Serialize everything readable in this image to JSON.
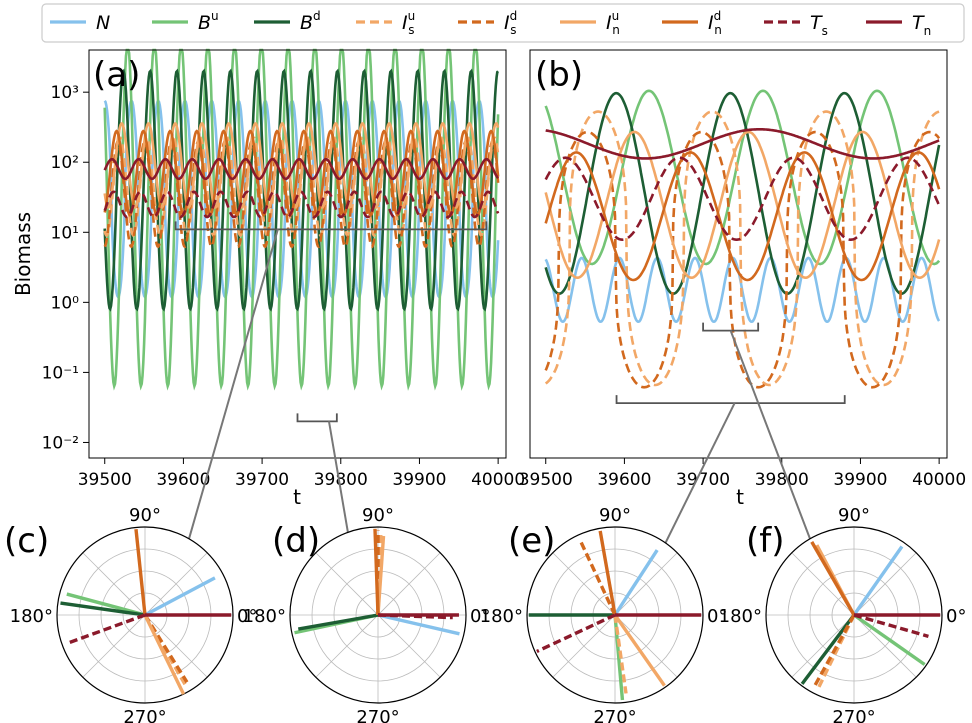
{
  "legend": {
    "entries": [
      {
        "key": "N",
        "main": "N",
        "sup": "",
        "sub": "",
        "color": "#85c1ec",
        "dash": "solid"
      },
      {
        "key": "Bu",
        "main": "B",
        "sup": "u",
        "sub": "",
        "color": "#74c476",
        "dash": "solid"
      },
      {
        "key": "Bd",
        "main": "B",
        "sup": "d",
        "sub": "",
        "color": "#1d5e34",
        "dash": "solid"
      },
      {
        "key": "Isu",
        "main": "I",
        "sup": "u",
        "sub": "s",
        "color": "#f2a766",
        "dash": "dashed"
      },
      {
        "key": "Isd",
        "main": "I",
        "sup": "d",
        "sub": "s",
        "color": "#d2691e",
        "dash": "dashed"
      },
      {
        "key": "Inu",
        "main": "I",
        "sup": "u",
        "sub": "n",
        "color": "#f2a766",
        "dash": "solid"
      },
      {
        "key": "Ind",
        "main": "I",
        "sup": "d",
        "sub": "n",
        "color": "#d2691e",
        "dash": "solid"
      },
      {
        "key": "Ts",
        "main": "T",
        "sup": "",
        "sub": "s",
        "color": "#8b1a2b",
        "dash": "dashed"
      },
      {
        "key": "Tn",
        "main": "T",
        "sup": "",
        "sub": "n",
        "color": "#8b1a2b",
        "dash": "solid"
      }
    ]
  },
  "chart_data": [
    {
      "id": "a",
      "panel_label": "(a)",
      "type": "line",
      "scale": "log",
      "ylabel": "Biomass",
      "xlabel": "",
      "xlim": [
        39480,
        40010
      ],
      "ylim": [
        0.006,
        4000
      ],
      "xticks": [
        39500,
        39600,
        39700,
        39800,
        39900,
        40000
      ],
      "xtick_labels": [
        "39500",
        "39600",
        "39700",
        "39800",
        "39900",
        "40000"
      ],
      "yticks": [
        0.01,
        0.1,
        1,
        10,
        100,
        1000
      ],
      "ytick_labels": [
        "10⁻²",
        "10⁻¹",
        "10⁰",
        "10¹",
        "10²",
        "10³"
      ],
      "grid": false,
      "series": [
        {
          "key": "N",
          "base": 30,
          "amp_dex": 1.4,
          "period": 34,
          "phase": 0.0,
          "sharp": 1.5
        },
        {
          "key": "Bu",
          "base": 18,
          "amp_dex": 2.45,
          "period": 34,
          "phase": 0.9,
          "sharp": 1.0
        },
        {
          "key": "Bd",
          "base": 40,
          "amp_dex": 1.7,
          "period": 34,
          "phase": 1.9,
          "sharp": 1.0
        },
        {
          "key": "Isu",
          "base": 45,
          "amp_dex": 0.7,
          "period": 34,
          "phase": 2.7,
          "sharp": 1.0
        },
        {
          "key": "Isd",
          "base": 35,
          "amp_dex": 0.75,
          "period": 34,
          "phase": 3.2,
          "sharp": 1.0
        },
        {
          "key": "Inu",
          "base": 90,
          "amp_dex": 0.6,
          "period": 34,
          "phase": 2.3,
          "sharp": 1.0
        },
        {
          "key": "Ind",
          "base": 70,
          "amp_dex": 0.6,
          "period": 34,
          "phase": 3.5,
          "sharp": 1.0
        },
        {
          "key": "Ts",
          "base": 25,
          "amp_dex": 0.18,
          "period": 34,
          "phase": 4.2,
          "sharp": 1.0
        },
        {
          "key": "Tn",
          "base": 80,
          "amp_dex": 0.14,
          "period": 34,
          "phase": 4.6,
          "sharp": 1.0
        }
      ],
      "brackets": [
        {
          "x0": 39590,
          "x1": 39985,
          "y": 11,
          "down": false
        },
        {
          "x0": 39745,
          "x1": 39795,
          "y": 0.02,
          "down": true
        }
      ]
    },
    {
      "id": "b",
      "panel_label": "(b)",
      "type": "line",
      "scale": "log",
      "ylabel": "",
      "xlabel": "",
      "xlim": [
        39480,
        40010
      ],
      "ylim": [
        0.1,
        3000
      ],
      "xticks": [
        39500,
        39600,
        39700,
        39800,
        39900,
        40000
      ],
      "xtick_labels": [
        "39500",
        "39600",
        "39700",
        "39800",
        "39900",
        "40000"
      ],
      "yticks": [],
      "ytick_labels": [],
      "grid": false,
      "series": [
        {
          "key": "N",
          "base": 7,
          "amp_dex": 0.35,
          "period": 48,
          "phase": 0.3,
          "sharp": 1.0
        },
        {
          "key": "Bu",
          "base": 120,
          "amp_dex": 0.95,
          "period": 145,
          "phase": 0.6,
          "sharp": 1.0
        },
        {
          "key": "Bd",
          "base": 80,
          "amp_dex": 1.1,
          "period": 145,
          "phase": 2.4,
          "sharp": 1.0
        },
        {
          "key": "Isu",
          "base": 20,
          "amp_dex": 1.5,
          "period": 145,
          "phase": 3.4,
          "sharp": 3.0
        },
        {
          "key": "Isd",
          "base": 15,
          "amp_dex": 1.4,
          "period": 145,
          "phase": 4.0,
          "sharp": 3.0
        },
        {
          "key": "Inu",
          "base": 60,
          "amp_dex": 0.8,
          "period": 145,
          "phase": 1.4,
          "sharp": 1.0
        },
        {
          "key": "Ind",
          "base": 45,
          "amp_dex": 0.7,
          "period": 145,
          "phase": 4.6,
          "sharp": 1.0
        },
        {
          "key": "Ts",
          "base": 70,
          "amp_dex": 0.45,
          "period": 145,
          "phase": 5.2,
          "sharp": 1.0
        },
        {
          "key": "Tn",
          "base": 280,
          "amp_dex": 0.16,
          "period": 290,
          "phase": 0.4,
          "sharp": 1.0
        }
      ],
      "brackets": [
        {
          "x0": 39590,
          "x1": 39880,
          "y": 0.4,
          "down": false
        },
        {
          "x0": 39700,
          "x1": 39770,
          "y": 2.5,
          "down": false
        }
      ]
    },
    {
      "id": "c",
      "panel_label": "(c)",
      "type": "polar",
      "angle_labels": [
        "90°",
        "180°",
        "270°",
        "0°"
      ],
      "lines": [
        {
          "key": "N",
          "angle": 28,
          "r": 0.9
        },
        {
          "key": "Bu",
          "angle": 165,
          "r": 0.92
        },
        {
          "key": "Bd",
          "angle": 172,
          "r": 0.97
        },
        {
          "key": "Isu",
          "angle": -60,
          "r": 0.95
        },
        {
          "key": "Isd",
          "angle": -58,
          "r": 0.9
        },
        {
          "key": "Inu",
          "angle": -64,
          "r": 1.0
        },
        {
          "key": "Ind",
          "angle": 96,
          "r": 0.98
        },
        {
          "key": "Ts",
          "angle": 200,
          "r": 0.95
        },
        {
          "key": "Tn",
          "angle": 0,
          "r": 0.98
        }
      ]
    },
    {
      "id": "d",
      "panel_label": "(d)",
      "type": "polar",
      "angle_labels": [
        "90°",
        "180°",
        "270°",
        "0°"
      ],
      "lines": [
        {
          "key": "N",
          "angle": -13,
          "r": 0.95
        },
        {
          "key": "Bu",
          "angle": 192,
          "r": 0.97
        },
        {
          "key": "Bd",
          "angle": 190,
          "r": 0.92
        },
        {
          "key": "Isu",
          "angle": 88,
          "r": 0.92
        },
        {
          "key": "Isd",
          "angle": 90,
          "r": 0.96
        },
        {
          "key": "Inu",
          "angle": 86,
          "r": 0.9
        },
        {
          "key": "Ind",
          "angle": 92,
          "r": 0.98
        },
        {
          "key": "Ts",
          "angle": -2,
          "r": 0.85
        },
        {
          "key": "Tn",
          "angle": 0,
          "r": 0.92
        }
      ]
    },
    {
      "id": "e",
      "panel_label": "(e)",
      "type": "polar",
      "angle_labels": [
        "90°",
        "180°",
        "270°",
        "0°"
      ],
      "lines": [
        {
          "key": "N",
          "angle": 57,
          "r": 0.88
        },
        {
          "key": "Bu",
          "angle": -85,
          "r": 0.97
        },
        {
          "key": "Bd",
          "angle": 180,
          "r": 0.98
        },
        {
          "key": "Isu",
          "angle": -82,
          "r": 0.9
        },
        {
          "key": "Isd",
          "angle": 115,
          "r": 0.95
        },
        {
          "key": "Inu",
          "angle": -55,
          "r": 0.98
        },
        {
          "key": "Ind",
          "angle": 100,
          "r": 0.97
        },
        {
          "key": "Ts",
          "angle": 205,
          "r": 0.98
        },
        {
          "key": "Tn",
          "angle": 0,
          "r": 0.98
        }
      ]
    },
    {
      "id": "f",
      "panel_label": "(f)",
      "type": "polar",
      "angle_labels": [
        "90°",
        "180°",
        "270°",
        "0°"
      ],
      "lines": [
        {
          "key": "N",
          "angle": 55,
          "r": 0.95
        },
        {
          "key": "Bu",
          "angle": -35,
          "r": 0.98
        },
        {
          "key": "Bd",
          "angle": 233,
          "r": 0.98
        },
        {
          "key": "Isu",
          "angle": 244,
          "r": 0.95
        },
        {
          "key": "Isd",
          "angle": 241,
          "r": 0.92
        },
        {
          "key": "Inu",
          "angle": 118,
          "r": 0.9
        },
        {
          "key": "Ind",
          "angle": 120,
          "r": 0.96
        },
        {
          "key": "Ts",
          "angle": -16,
          "r": 0.88
        },
        {
          "key": "Tn",
          "angle": 0,
          "r": 0.98
        }
      ]
    }
  ],
  "xlabel_text": "t",
  "zoom_link_color": "#777777"
}
